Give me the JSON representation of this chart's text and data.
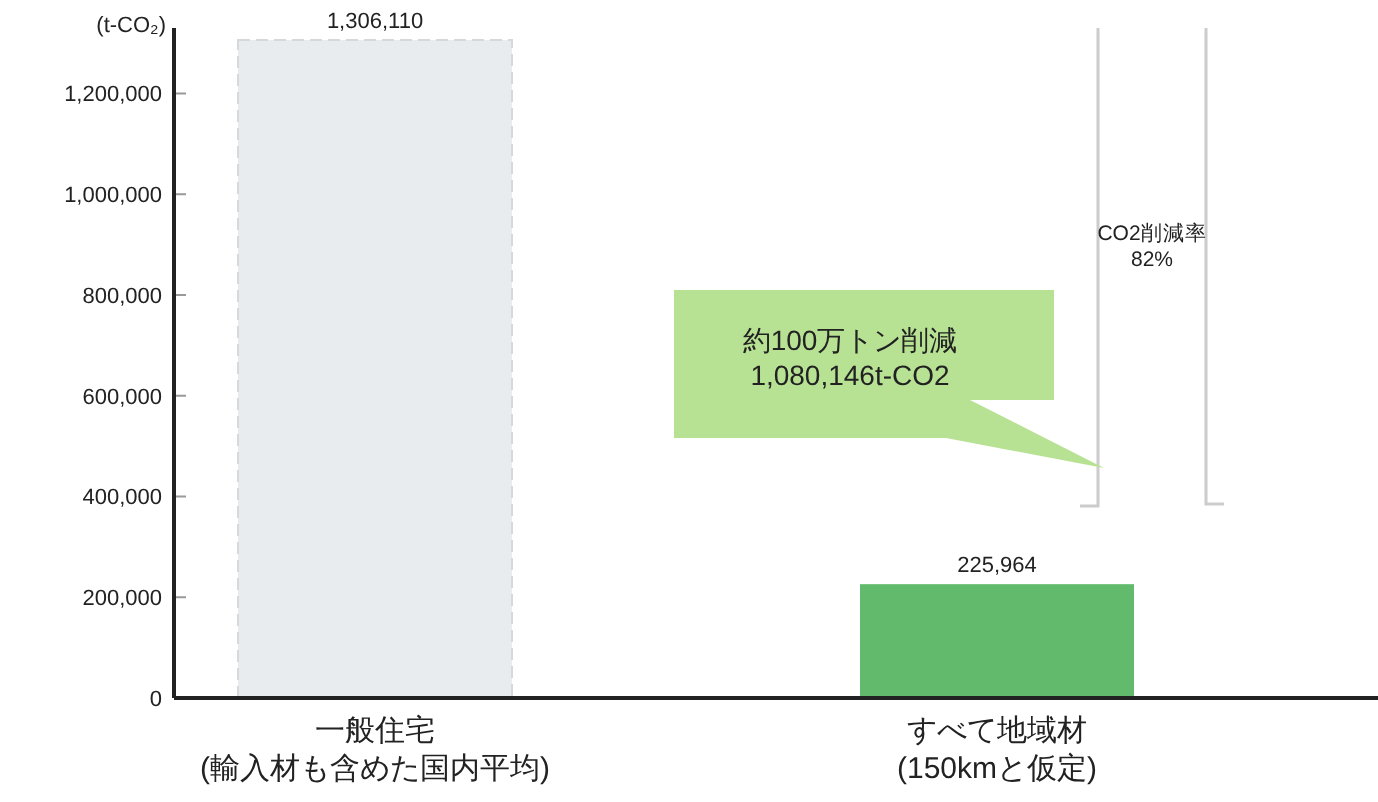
{
  "chart_data": {
    "type": "bar",
    "ylabel": "(t-CO₂)",
    "categories": [
      "一般住宅\n(輸入材も含めた国内平均)",
      "すべて地域材\n(150kmと仮定)"
    ],
    "values": [
      1306110,
      225964
    ],
    "colors": [
      "#e9ecef",
      "#62bb6c"
    ],
    "value_labels": [
      "1,306,110",
      "225,964"
    ],
    "ylim": [
      0,
      1330000
    ],
    "yticks": [
      {
        "value": 0,
        "label": "0"
      },
      {
        "value": 200000,
        "label": "200,000"
      },
      {
        "value": 400000,
        "label": "400,000"
      },
      {
        "value": 600000,
        "label": "600,000"
      },
      {
        "value": 800000,
        "label": "800,000"
      },
      {
        "value": 1000000,
        "label": "1,000,000"
      },
      {
        "value": 1200000,
        "label": "1,200,000"
      }
    ],
    "annotations": [
      "約100万トン削減\n1,080,146t-CO2",
      "CO2削減率\n82%"
    ],
    "grid": false
  }
}
